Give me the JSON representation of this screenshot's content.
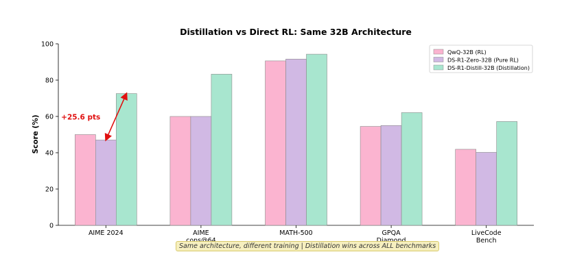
{
  "chart_data": {
    "type": "bar",
    "title": "Distillation vs Direct RL: Same 32B Architecture",
    "xlabel": "",
    "ylabel": "Score (%)",
    "ylim": [
      0,
      100
    ],
    "yticks": [
      0,
      20,
      40,
      60,
      80,
      100
    ],
    "categories": [
      [
        "AIME 2024"
      ],
      [
        "AIME",
        "cons@64"
      ],
      [
        "MATH-500"
      ],
      [
        "GPQA",
        "Diamond"
      ],
      [
        "LiveCode",
        "Bench"
      ]
    ],
    "series": [
      {
        "name": "QwQ-32B (RL)",
        "color": "#fbb4d0",
        "values": [
          50.0,
          60.0,
          90.6,
          54.5,
          41.9
        ]
      },
      {
        "name": "DS-R1-Zero-32B (Pure RL)",
        "color": "#d1b9e4",
        "values": [
          47.0,
          60.0,
          91.6,
          55.0,
          40.2
        ]
      },
      {
        "name": "DS-R1-Distill-32B (Distillation)",
        "color": "#a8e6cf",
        "values": [
          72.6,
          83.3,
          94.3,
          62.1,
          57.2
        ]
      }
    ],
    "legend_position": "top-right",
    "grid": false,
    "annotation": {
      "text": "+25.6 pts",
      "color": "#e01010",
      "from_series": 1,
      "to_series": 2,
      "category": 0
    }
  },
  "caption": "Same architecture, different training  |  Distillation wins across ALL benchmarks"
}
